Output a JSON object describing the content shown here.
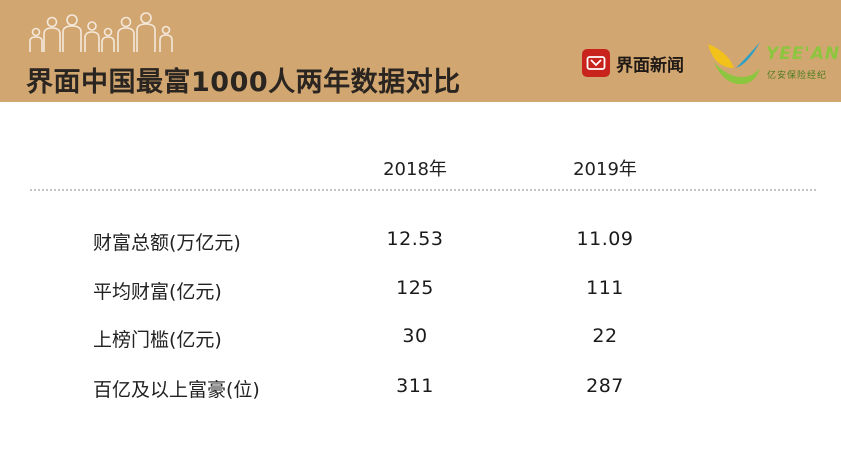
{
  "header": {
    "title": "界面中国最富1000人两年数据对比",
    "people_icon": "family-silhouettes-icon",
    "brand_primary": {
      "name": "界面新闻",
      "icon": "jiemian-logo-icon",
      "color": "#c8231c"
    },
    "brand_secondary": {
      "name": "YEE'AN",
      "subtitle": "亿安保险经纪",
      "icon": "yeean-logo-icon",
      "colors": [
        "#8cc63f",
        "#2f9fc4",
        "#f2c21b"
      ]
    },
    "background_color": "#d2a670"
  },
  "table": {
    "columns": [
      "2018年",
      "2019年"
    ],
    "rows": [
      {
        "label": "财富总额(万亿元)",
        "values": [
          "12.53",
          "11.09"
        ]
      },
      {
        "label": "平均财富(亿元)",
        "values": [
          "125",
          "111"
        ]
      },
      {
        "label": "上榜门槛(亿元)",
        "values": [
          "30",
          "22"
        ]
      },
      {
        "label": "百亿及以上富豪(位)",
        "values": [
          "311",
          "287"
        ]
      }
    ]
  }
}
